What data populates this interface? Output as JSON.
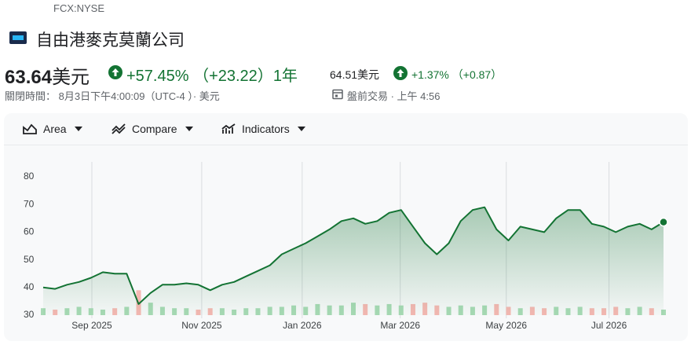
{
  "header": {
    "ticker": "FCX:NYSE",
    "name": "自由港麥克莫蘭公司"
  },
  "quote": {
    "price": "63.64",
    "currency": "美元",
    "change_percent": "+57.45%",
    "change_abs": "（+23.22）",
    "period": "1年",
    "close_time": "關閉時間： 8月3日下午4:00:09（UTC-4 ）· 美元",
    "extended_price": "64.51美元",
    "extended_change_percent": "+1.37%",
    "extended_change_abs": "（+0.87）",
    "extended_label": "盤前交易 · 上午 4:56"
  },
  "toolbar": {
    "area": "Area",
    "compare": "Compare",
    "indicators": "Indicators"
  },
  "chart_data": {
    "type": "area",
    "series": [
      {
        "color": "#137333",
        "values": [
          40,
          39.5,
          41,
          42,
          43.5,
          45.5,
          45,
          45,
          34,
          38,
          41,
          41,
          41.5,
          41,
          39,
          41,
          42,
          44,
          46,
          48,
          52,
          54,
          56,
          58.5,
          61,
          64,
          65,
          63,
          64,
          67,
          68,
          62,
          56,
          52,
          56,
          64,
          68,
          69,
          61,
          57,
          62,
          61,
          60,
          65,
          68,
          68,
          63,
          62,
          60,
          62,
          63,
          61,
          63.64
        ]
      },
      {
        "axis": "y2",
        "color": "#a8dab5",
        "down_color": "#f6b8b3",
        "values": [
          5,
          4,
          5,
          6,
          5,
          4,
          5,
          6,
          18,
          9,
          6,
          5,
          5,
          4,
          5,
          5,
          4,
          5,
          5,
          6,
          6,
          7,
          6,
          8,
          7,
          7,
          9,
          8,
          7,
          8,
          7,
          8,
          9,
          7,
          6,
          7,
          6,
          7,
          8,
          6,
          5,
          6,
          5,
          6,
          5,
          6,
          5,
          5,
          6,
          5,
          6,
          5,
          4
        ]
      }
    ],
    "xlim": [
      0,
      52
    ],
    "xticks": [
      {
        "value": 4.08,
        "label": "Sep 2025"
      },
      {
        "value": 13.29,
        "label": "Nov 2025"
      },
      {
        "value": 21.71,
        "label": "Jan 2026"
      },
      {
        "value": 29.93,
        "label": "Mar 2026"
      },
      {
        "value": 38.82,
        "label": "May 2026"
      },
      {
        "value": 47.43,
        "label": "Jul 2026"
      }
    ],
    "ylim": [
      30,
      80
    ],
    "yticks": [
      30,
      40,
      50,
      60,
      70,
      80
    ],
    "y2lim": [
      0,
      100
    ]
  }
}
